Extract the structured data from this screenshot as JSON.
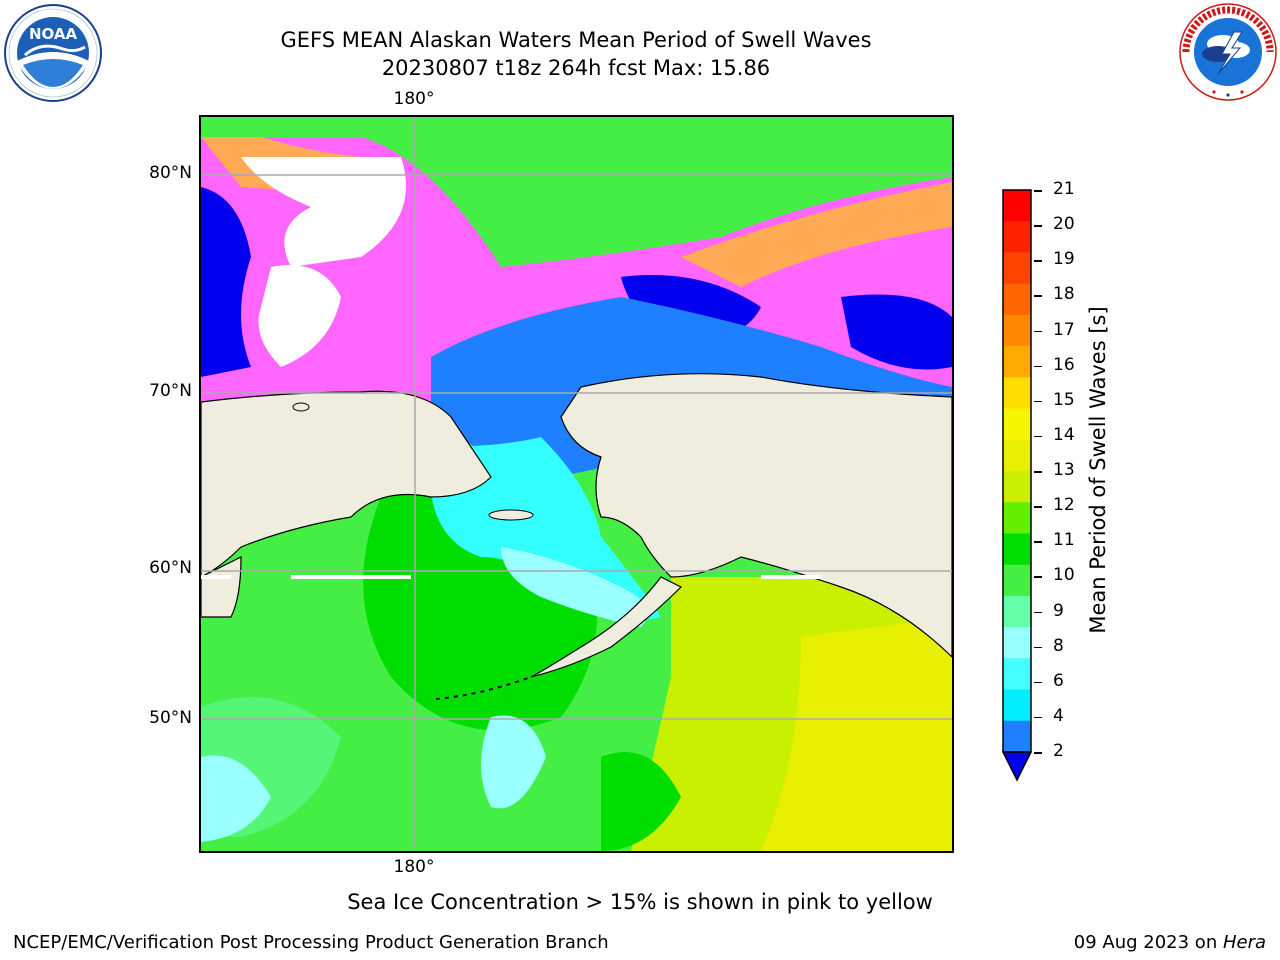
{
  "header": {
    "title_line1": "GEFS MEAN Alaskan Waters Mean Period of Swell Waves",
    "title_line2": "20230807 t18z 264h fcst   Max: 15.86"
  },
  "logos": {
    "left": "NOAA",
    "left_ring_text": "NATIONAL OCEANIC AND ATMOSPHERIC ADMINISTRATION · U.S. DEPARTMENT OF COMMERCE",
    "right_ring_text": "NATIONAL WEATHER SERVICE"
  },
  "map": {
    "lon_label_top": "180°",
    "lon_label_bottom": "180°",
    "lat_labels": [
      "80°N",
      "70°N",
      "60°N",
      "50°N"
    ],
    "land_color": "#efedde",
    "ocean_colors": {
      "deep_green": "#00dd00",
      "mid_green": "#44ee44",
      "light_green": "#55f577",
      "yellow_green": "#c8f000",
      "yellow": "#e6f000",
      "cyan": "#33ffff",
      "pale_cyan": "#99ffff",
      "blue": "#1e7fff",
      "dark_blue": "#0000ee",
      "ice_pink": "#ff66ff",
      "ice_orange": "#ffaa55"
    }
  },
  "colorbar": {
    "title": "Mean Period of Swell Waves [s]",
    "ticks": [
      "21",
      "20",
      "19",
      "18",
      "17",
      "16",
      "15",
      "14",
      "13",
      "12",
      "11",
      "10",
      "9",
      "8",
      "6",
      "4",
      "2"
    ],
    "colors": [
      "#ff0000",
      "#ff2200",
      "#ff4400",
      "#ff6600",
      "#ff8800",
      "#ffaa00",
      "#ffdd00",
      "#f6f600",
      "#e6f000",
      "#c8f000",
      "#66ee00",
      "#00dd00",
      "#44ee44",
      "#66ffaa",
      "#99ffff",
      "#44ffff",
      "#00eeff",
      "#1e7fff"
    ],
    "extend_color": "#0000ee"
  },
  "note": "Sea Ice Concentration > 15% is shown in pink to yellow",
  "footer": {
    "left": "NCEP/EMC/Verification Post Processing Product Generation Branch",
    "right_prefix": "09 Aug 2023 on ",
    "right_host": "Hera"
  }
}
